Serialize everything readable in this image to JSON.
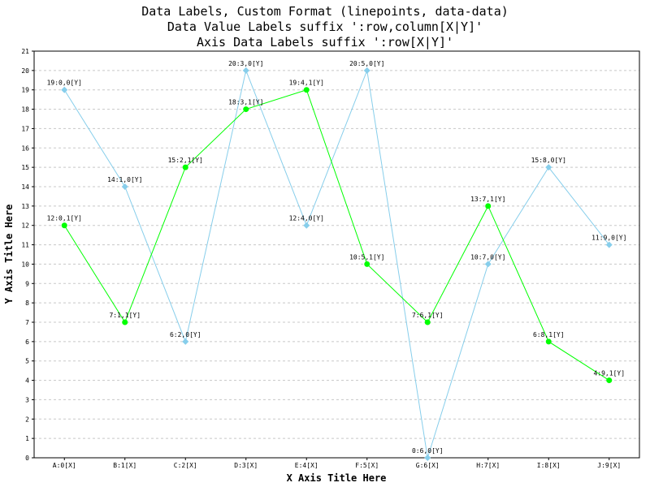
{
  "chart_data": {
    "type": "line",
    "title_lines": [
      "Data Labels, Custom Format (linepoints, data-data)",
      "Data Value Labels suffix ':row,column[X|Y]'",
      "Axis Data Labels suffix ':row[X|Y]'"
    ],
    "xlabel": "X Axis Title Here",
    "ylabel": "Y Axis Title Here",
    "ylim": [
      0,
      21
    ],
    "yticks": [
      0,
      1,
      2,
      3,
      4,
      5,
      6,
      7,
      8,
      9,
      10,
      11,
      12,
      13,
      14,
      15,
      16,
      17,
      18,
      19,
      20,
      21
    ],
    "grid": "horizontal dashed",
    "categories": [
      "A:0[X]",
      "B:1[X]",
      "C:2[X]",
      "D:3[X]",
      "E:4[X]",
      "F:5[X]",
      "G:6[X]",
      "H:7[X]",
      "I:8[X]",
      "J:9[X]"
    ],
    "series": [
      {
        "color": "#87ceeb",
        "marker": "diamond",
        "values": [
          19,
          14,
          6,
          20,
          12,
          20,
          0,
          10,
          15,
          11
        ],
        "labels": [
          "19:0,0[Y]",
          "14:1,0[Y]",
          "6:2,0[Y]",
          "20:3,0[Y]",
          "12:4,0[Y]",
          "20:5,0[Y]",
          "0:6,0[Y]",
          "10:7,0[Y]",
          "15:8,0[Y]",
          "11:9,0[Y]"
        ]
      },
      {
        "color": "#00ff00",
        "marker": "circle",
        "values": [
          12,
          7,
          15,
          18,
          19,
          10,
          7,
          13,
          6,
          4
        ],
        "labels": [
          "12:0,1[Y]",
          "7:1,1[Y]",
          "15:2,1[Y]",
          "18:3,1[Y]",
          "19:4,1[Y]",
          "10:5,1[Y]",
          "7:6,1[Y]",
          "13:7,1[Y]",
          "6:8,1[Y]",
          "4:9,1[Y]"
        ]
      }
    ]
  }
}
